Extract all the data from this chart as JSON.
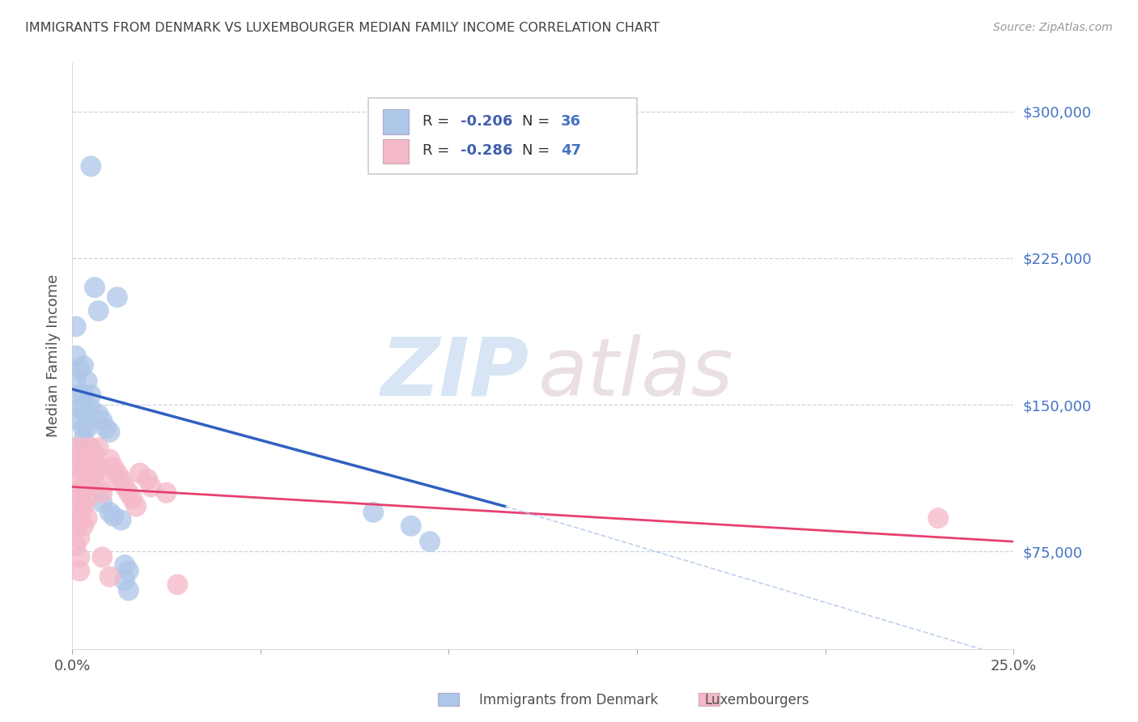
{
  "title": "IMMIGRANTS FROM DENMARK VS LUXEMBOURGER MEDIAN FAMILY INCOME CORRELATION CHART",
  "source": "Source: ZipAtlas.com",
  "ylabel": "Median Family Income",
  "xlim": [
    0.0,
    0.25
  ],
  "ylim": [
    25000,
    325000
  ],
  "yticks": [
    75000,
    150000,
    225000,
    300000
  ],
  "ytick_labels": [
    "$75,000",
    "$150,000",
    "$225,000",
    "$300,000"
  ],
  "xticks": [
    0.0,
    0.05,
    0.1,
    0.15,
    0.2,
    0.25
  ],
  "xtick_labels": [
    "0.0%",
    "",
    "",
    "",
    "",
    "25.0%"
  ],
  "color_denmark": "#aec6e8",
  "color_luxembourg": "#f4b8c8",
  "line_color_denmark": "#3060c0",
  "line_color_luxembourg": "#e84070",
  "background_color": "#ffffff",
  "denmark_scatter": [
    [
      0.001,
      163000
    ],
    [
      0.001,
      175000
    ],
    [
      0.001,
      190000
    ],
    [
      0.002,
      168000
    ],
    [
      0.002,
      155000
    ],
    [
      0.002,
      148000
    ],
    [
      0.002,
      142000
    ],
    [
      0.003,
      170000
    ],
    [
      0.003,
      155000
    ],
    [
      0.003,
      148000
    ],
    [
      0.003,
      138000
    ],
    [
      0.003,
      132000
    ],
    [
      0.004,
      162000
    ],
    [
      0.004,
      145000
    ],
    [
      0.004,
      138000
    ],
    [
      0.005,
      155000
    ],
    [
      0.005,
      148000
    ],
    [
      0.005,
      272000
    ],
    [
      0.006,
      210000
    ],
    [
      0.007,
      198000
    ],
    [
      0.007,
      145000
    ],
    [
      0.008,
      142000
    ],
    [
      0.008,
      100000
    ],
    [
      0.009,
      138000
    ],
    [
      0.01,
      136000
    ],
    [
      0.01,
      95000
    ],
    [
      0.011,
      93000
    ],
    [
      0.012,
      205000
    ],
    [
      0.013,
      91000
    ],
    [
      0.014,
      68000
    ],
    [
      0.014,
      60000
    ],
    [
      0.015,
      65000
    ],
    [
      0.015,
      55000
    ],
    [
      0.08,
      95000
    ],
    [
      0.09,
      88000
    ],
    [
      0.095,
      80000
    ]
  ],
  "luxembourg_scatter": [
    [
      0.001,
      118000
    ],
    [
      0.001,
      128000
    ],
    [
      0.001,
      105000
    ],
    [
      0.001,
      95000
    ],
    [
      0.001,
      88000
    ],
    [
      0.001,
      78000
    ],
    [
      0.002,
      122000
    ],
    [
      0.002,
      112000
    ],
    [
      0.002,
      102000
    ],
    [
      0.002,
      92000
    ],
    [
      0.002,
      82000
    ],
    [
      0.002,
      72000
    ],
    [
      0.003,
      128000
    ],
    [
      0.003,
      118000
    ],
    [
      0.003,
      108000
    ],
    [
      0.003,
      98000
    ],
    [
      0.003,
      88000
    ],
    [
      0.004,
      122000
    ],
    [
      0.004,
      112000
    ],
    [
      0.004,
      102000
    ],
    [
      0.004,
      92000
    ],
    [
      0.005,
      128000
    ],
    [
      0.005,
      118000
    ],
    [
      0.005,
      108000
    ],
    [
      0.006,
      125000
    ],
    [
      0.006,
      115000
    ],
    [
      0.007,
      128000
    ],
    [
      0.007,
      118000
    ],
    [
      0.008,
      105000
    ],
    [
      0.009,
      110000
    ],
    [
      0.01,
      122000
    ],
    [
      0.011,
      118000
    ],
    [
      0.012,
      115000
    ],
    [
      0.013,
      112000
    ],
    [
      0.014,
      108000
    ],
    [
      0.015,
      105000
    ],
    [
      0.016,
      102000
    ],
    [
      0.017,
      98000
    ],
    [
      0.018,
      115000
    ],
    [
      0.02,
      112000
    ],
    [
      0.021,
      108000
    ],
    [
      0.025,
      105000
    ],
    [
      0.028,
      58000
    ],
    [
      0.23,
      92000
    ],
    [
      0.008,
      72000
    ],
    [
      0.002,
      65000
    ],
    [
      0.01,
      62000
    ]
  ],
  "denmark_line_x": [
    0.0,
    0.115
  ],
  "denmark_line_y": [
    158000,
    98000
  ],
  "luxembourg_line_x": [
    0.0,
    0.25
  ],
  "luxembourg_line_y": [
    108000,
    80000
  ],
  "dashed_line_x": [
    0.115,
    0.25
  ],
  "dashed_line_y": [
    98000,
    20000
  ],
  "grid_color": "#c8d4e4",
  "title_color": "#404040",
  "axis_label_color": "#505050",
  "tick_color_right": "#4472c4",
  "legend_r_color": "#4060b0",
  "legend_n_color": "#4472c4"
}
